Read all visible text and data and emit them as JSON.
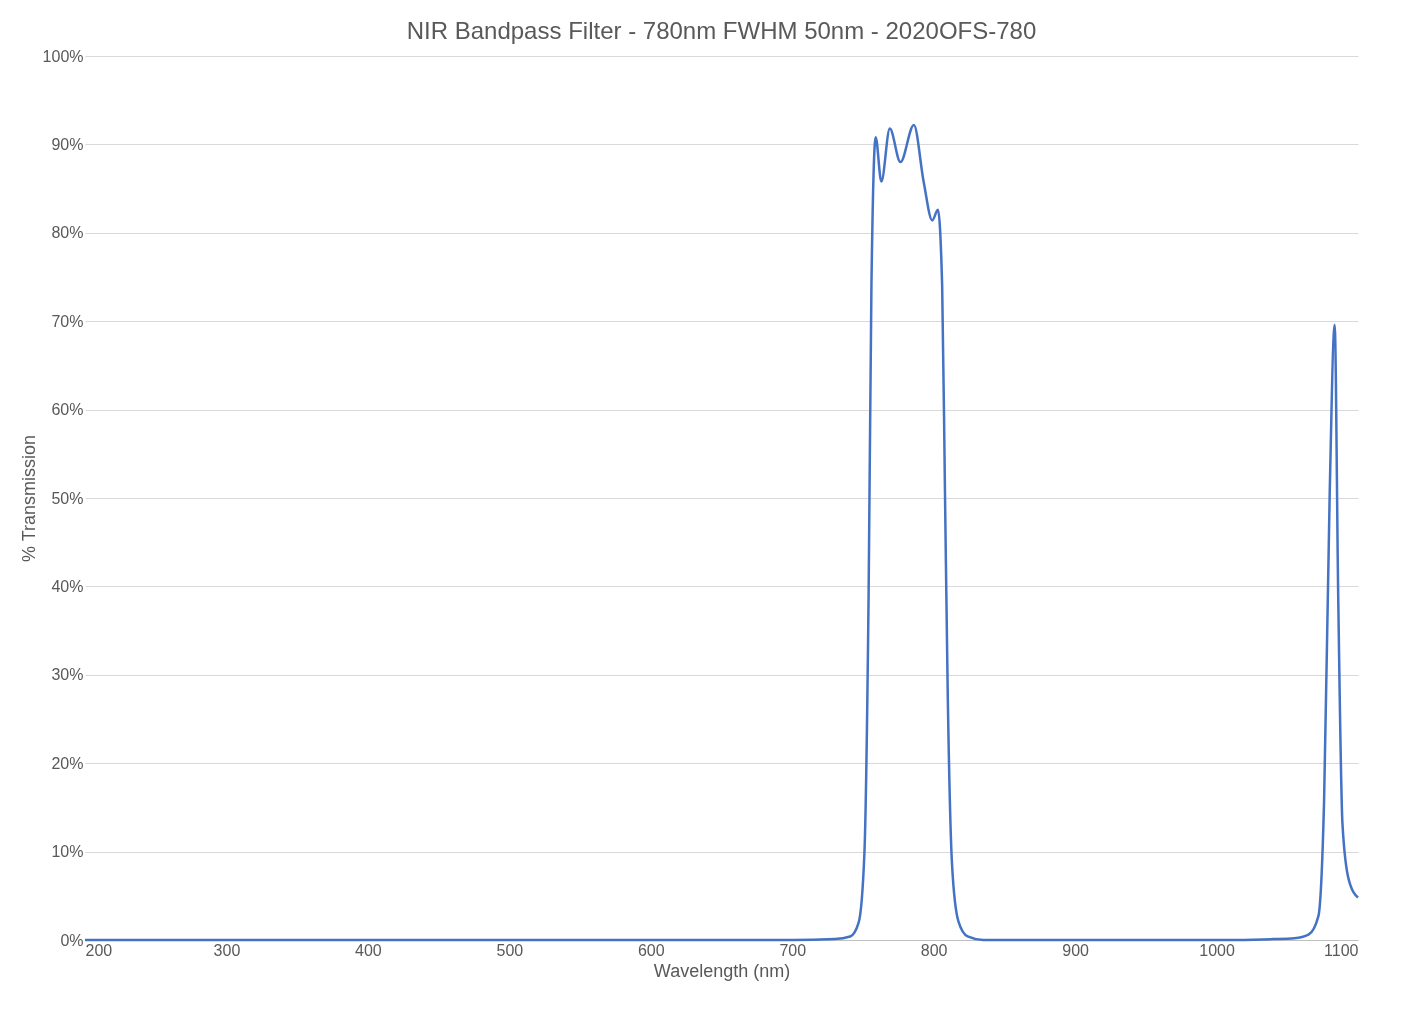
{
  "chart_data": {
    "type": "line",
    "title": "NIR Bandpass Filter - 780nm FWHM 50nm - 2020OFS-780",
    "xlabel": "Wavelength (nm)",
    "ylabel": "% Transmission",
    "series": [
      {
        "color": "#4472c4",
        "x": [
          200,
          300,
          400,
          500,
          600,
          700,
          730,
          741,
          747,
          751,
          754,
          756,
          759,
          763,
          769,
          776.5,
          786,
          793,
          799,
          803,
          806,
          808,
          810,
          813,
          817.5,
          824,
          835,
          900,
          1000,
          1040,
          1055,
          1065,
          1072,
          1076,
          1080,
          1083.5,
          1086,
          1089,
          1093.5,
          1100
        ],
        "values": [
          0,
          0,
          0,
          0,
          0,
          0,
          0.1,
          0.4,
          2,
          9.7,
          39,
          74,
          90.8,
          85.8,
          91.8,
          88,
          92.2,
          85.7,
          81.4,
          82.6,
          74,
          50.6,
          27.3,
          8.5,
          2.1,
          0.4,
          0,
          0,
          0,
          0.1,
          0.2,
          0.6,
          2.7,
          15.6,
          50.6,
          69.6,
          39,
          13.2,
          6.8,
          4.8
        ]
      }
    ],
    "xlim": [
      200,
      1100
    ],
    "xticks": [
      200,
      300,
      400,
      500,
      600,
      700,
      800,
      900,
      1000,
      1100
    ],
    "ylim": [
      0,
      100
    ],
    "yticks": [
      {
        "value": 0,
        "label": "0%"
      },
      {
        "value": 10,
        "label": "10%"
      },
      {
        "value": 20,
        "label": "20%"
      },
      {
        "value": 30,
        "label": "30%"
      },
      {
        "value": 40,
        "label": "40%"
      },
      {
        "value": 50,
        "label": "50%"
      },
      {
        "value": 60,
        "label": "60%"
      },
      {
        "value": 70,
        "label": "70%"
      },
      {
        "value": 80,
        "label": "80%"
      },
      {
        "value": 90,
        "label": "90%"
      },
      {
        "value": 100,
        "label": "100%"
      }
    ],
    "grid": "y",
    "marker": "none",
    "line_style": "solid"
  }
}
